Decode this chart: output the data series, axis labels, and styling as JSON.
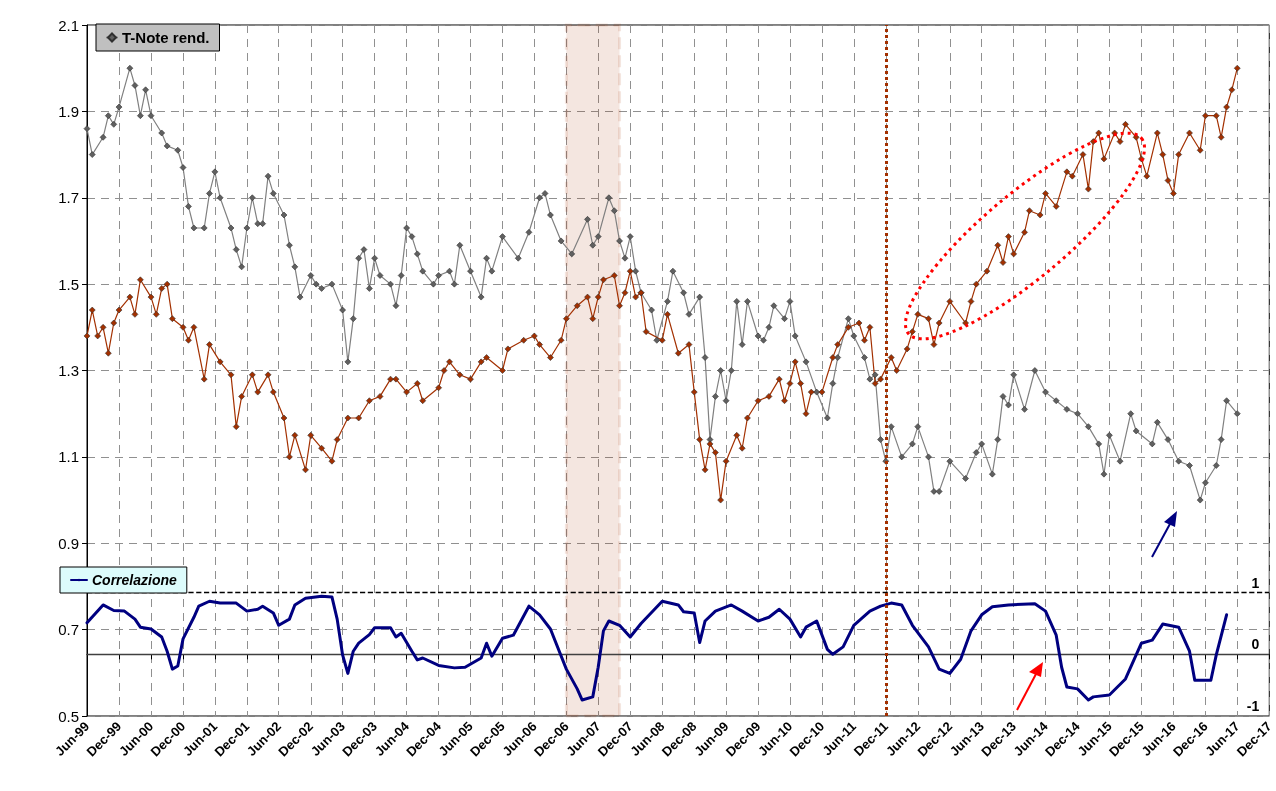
{
  "chart_data": {
    "type": "line",
    "xlim": [
      "1999-06",
      "2017-12"
    ],
    "xticks": [
      {
        "value": "1999-06",
        "label": "Jun-99"
      },
      {
        "value": "1999-12",
        "label": "Dec-99"
      },
      {
        "value": "2000-06",
        "label": "Jun-00"
      },
      {
        "value": "2000-12",
        "label": "Dec-00"
      },
      {
        "value": "2001-06",
        "label": "Jun-01"
      },
      {
        "value": "2001-12",
        "label": "Dec-01"
      },
      {
        "value": "2002-06",
        "label": "Jun-02"
      },
      {
        "value": "2002-12",
        "label": "Dec-02"
      },
      {
        "value": "2003-06",
        "label": "Jun-03"
      },
      {
        "value": "2003-12",
        "label": "Dec-03"
      },
      {
        "value": "2004-06",
        "label": "Jun-04"
      },
      {
        "value": "2004-12",
        "label": "Dec-04"
      },
      {
        "value": "2005-06",
        "label": "Jun-05"
      },
      {
        "value": "2005-12",
        "label": "Dec-05"
      },
      {
        "value": "2006-06",
        "label": "Jun-06"
      },
      {
        "value": "2006-12",
        "label": "Dec-06"
      },
      {
        "value": "2007-06",
        "label": "Jun-07"
      },
      {
        "value": "2007-12",
        "label": "Dec-07"
      },
      {
        "value": "2008-06",
        "label": "Jun-08"
      },
      {
        "value": "2008-12",
        "label": "Dec-08"
      },
      {
        "value": "2009-06",
        "label": "Jun-09"
      },
      {
        "value": "2009-12",
        "label": "Dec-09"
      },
      {
        "value": "2010-06",
        "label": "Jun-10"
      },
      {
        "value": "2010-12",
        "label": "Dec-10"
      },
      {
        "value": "2011-06",
        "label": "Jun-11"
      },
      {
        "value": "2011-12",
        "label": "Dec-11"
      },
      {
        "value": "2012-06",
        "label": "Jun-12"
      },
      {
        "value": "2012-12",
        "label": "Dec-12"
      },
      {
        "value": "2013-06",
        "label": "Jun-13"
      },
      {
        "value": "2013-12",
        "label": "Dec-13"
      },
      {
        "value": "2014-06",
        "label": "Jun-14"
      },
      {
        "value": "2014-12",
        "label": "Dec-14"
      },
      {
        "value": "2015-06",
        "label": "Jun-15"
      },
      {
        "value": "2015-12",
        "label": "Dec-15"
      },
      {
        "value": "2016-06",
        "label": "Jun-16"
      },
      {
        "value": "2016-12",
        "label": "Dec-16"
      },
      {
        "value": "2017-06",
        "label": "Jun-17"
      },
      {
        "value": "2017-12",
        "label": "Dec-17"
      }
    ],
    "ylim": [
      0.5,
      2.1
    ],
    "yticks": [
      0.5,
      0.7,
      0.9,
      1.1,
      1.3,
      1.5,
      1.7,
      1.9,
      2.1
    ],
    "y2lim": [
      -1,
      10.2
    ],
    "y2ticks": [
      -1,
      0,
      1
    ],
    "grid": true,
    "legend": "top left",
    "series": [
      {
        "name": "T-Note rend.",
        "color": "#606060",
        "marker": "diamond",
        "x": [
          "1999-06",
          "1999-07",
          "1999-09",
          "1999-10",
          "1999-11",
          "1999-12",
          "2000-02",
          "2000-03",
          "2000-04",
          "2000-05",
          "2000-06",
          "2000-08",
          "2000-09",
          "2000-11",
          "2000-12",
          "2001-01",
          "2001-02",
          "2001-04",
          "2001-05",
          "2001-06",
          "2001-07",
          "2001-09",
          "2001-10",
          "2001-11",
          "2001-12",
          "2002-01",
          "2002-02",
          "2002-03",
          "2002-04",
          "2002-05",
          "2002-07",
          "2002-08",
          "2002-09",
          "2002-10",
          "2002-12",
          "2003-01",
          "2003-02",
          "2003-04",
          "2003-06",
          "2003-07",
          "2003-08",
          "2003-09",
          "2003-10",
          "2003-11",
          "2003-12",
          "2004-01",
          "2004-03",
          "2004-04",
          "2004-05",
          "2004-06",
          "2004-07",
          "2004-08",
          "2004-09",
          "2004-11",
          "2004-12",
          "2005-02",
          "2005-03",
          "2005-04",
          "2005-06",
          "2005-08",
          "2005-09",
          "2005-10",
          "2005-12",
          "2006-03",
          "2006-05",
          "2006-07",
          "2006-08",
          "2006-09",
          "2006-11",
          "2007-01",
          "2007-04",
          "2007-05",
          "2007-06",
          "2007-08",
          "2007-09",
          "2007-10",
          "2007-11",
          "2007-12",
          "2008-01",
          "2008-02",
          "2008-04",
          "2008-05",
          "2008-07",
          "2008-08",
          "2008-10",
          "2008-11",
          "2009-01",
          "2009-02",
          "2009-03",
          "2009-04",
          "2009-05",
          "2009-06",
          "2009-07",
          "2009-08",
          "2009-09",
          "2009-10",
          "2009-12",
          "2010-01",
          "2010-02",
          "2010-03",
          "2010-05",
          "2010-06",
          "2010-07",
          "2010-09",
          "2010-11",
          "2011-01",
          "2011-02",
          "2011-03",
          "2011-05",
          "2011-06",
          "2011-08",
          "2011-09",
          "2011-10",
          "2011-11",
          "2011-12",
          "2012-01",
          "2012-03",
          "2012-05",
          "2012-06",
          "2012-08",
          "2012-09",
          "2012-10",
          "2012-12",
          "2013-03",
          "2013-05",
          "2013-06",
          "2013-08",
          "2013-09",
          "2013-10",
          "2013-11",
          "2013-12",
          "2014-02",
          "2014-04",
          "2014-06",
          "2014-08",
          "2014-10",
          "2014-12",
          "2015-02",
          "2015-04",
          "2015-05",
          "2015-06",
          "2015-08",
          "2015-10",
          "2015-11",
          "2016-02",
          "2016-03",
          "2016-05",
          "2016-07",
          "2016-09",
          "2016-11",
          "2016-12",
          "2017-02",
          "2017-03",
          "2017-04",
          "2017-06"
        ],
        "values": [
          1.86,
          1.8,
          1.84,
          1.89,
          1.87,
          1.91,
          2.0,
          1.96,
          1.89,
          1.95,
          1.89,
          1.85,
          1.82,
          1.81,
          1.77,
          1.68,
          1.63,
          1.63,
          1.71,
          1.76,
          1.7,
          1.63,
          1.58,
          1.54,
          1.63,
          1.7,
          1.64,
          1.64,
          1.75,
          1.71,
          1.66,
          1.59,
          1.54,
          1.47,
          1.52,
          1.5,
          1.49,
          1.5,
          1.44,
          1.32,
          1.42,
          1.56,
          1.58,
          1.49,
          1.56,
          1.52,
          1.5,
          1.45,
          1.52,
          1.63,
          1.61,
          1.57,
          1.53,
          1.5,
          1.52,
          1.53,
          1.5,
          1.59,
          1.53,
          1.47,
          1.56,
          1.53,
          1.61,
          1.56,
          1.62,
          1.7,
          1.71,
          1.66,
          1.6,
          1.57,
          1.65,
          1.59,
          1.61,
          1.7,
          1.67,
          1.6,
          1.56,
          1.61,
          1.53,
          1.48,
          1.44,
          1.37,
          1.46,
          1.53,
          1.48,
          1.43,
          1.47,
          1.33,
          1.14,
          1.24,
          1.3,
          1.23,
          1.3,
          1.46,
          1.36,
          1.46,
          1.38,
          1.37,
          1.4,
          1.45,
          1.42,
          1.46,
          1.38,
          1.32,
          1.25,
          1.19,
          1.27,
          1.33,
          1.42,
          1.38,
          1.33,
          1.28,
          1.29,
          1.14,
          1.09,
          1.17,
          1.1,
          1.13,
          1.17,
          1.1,
          1.02,
          1.02,
          1.09,
          1.05,
          1.11,
          1.13,
          1.06,
          1.14,
          1.24,
          1.22,
          1.29,
          1.21,
          1.3,
          1.25,
          1.23,
          1.21,
          1.2,
          1.17,
          1.13,
          1.06,
          1.15,
          1.09,
          1.2,
          1.16,
          1.13,
          1.18,
          1.14,
          1.09,
          1.08,
          1.0,
          1.04,
          1.08,
          1.14,
          1.23,
          1.2
        ]
      },
      {
        "color": "#a33000",
        "marker": "diamond",
        "x": [
          "1999-06",
          "1999-07",
          "1999-08",
          "1999-09",
          "1999-10",
          "1999-11",
          "1999-12",
          "2000-02",
          "2000-03",
          "2000-04",
          "2000-06",
          "2000-07",
          "2000-08",
          "2000-09",
          "2000-10",
          "2000-12",
          "2001-01",
          "2001-02",
          "2001-04",
          "2001-05",
          "2001-07",
          "2001-09",
          "2001-10",
          "2001-11",
          "2002-01",
          "2002-02",
          "2002-04",
          "2002-05",
          "2002-07",
          "2002-08",
          "2002-09",
          "2002-11",
          "2002-12",
          "2003-02",
          "2003-04",
          "2003-05",
          "2003-07",
          "2003-09",
          "2003-11",
          "2004-01",
          "2004-03",
          "2004-04",
          "2004-06",
          "2004-08",
          "2004-09",
          "2004-12",
          "2005-01",
          "2005-02",
          "2005-04",
          "2005-06",
          "2005-08",
          "2005-09",
          "2005-12",
          "2006-01",
          "2006-04",
          "2006-06",
          "2006-07",
          "2006-09",
          "2006-11",
          "2006-12",
          "2007-02",
          "2007-04",
          "2007-05",
          "2007-06",
          "2007-07",
          "2007-09",
          "2007-10",
          "2007-11",
          "2007-12",
          "2008-01",
          "2008-02",
          "2008-03",
          "2008-06",
          "2008-07",
          "2008-09",
          "2008-11",
          "2008-12",
          "2009-01",
          "2009-02",
          "2009-03",
          "2009-04",
          "2009-05",
          "2009-06",
          "2009-08",
          "2009-09",
          "2009-10",
          "2009-12",
          "2010-02",
          "2010-04",
          "2010-05",
          "2010-06",
          "2010-07",
          "2010-08",
          "2010-09",
          "2010-10",
          "2010-12",
          "2011-02",
          "2011-03",
          "2011-05",
          "2011-07",
          "2011-08",
          "2011-09",
          "2011-10",
          "2011-11",
          "2012-01",
          "2012-02",
          "2012-04",
          "2012-05",
          "2012-06",
          "2012-08",
          "2012-09",
          "2012-10",
          "2012-12",
          "2013-03",
          "2013-04",
          "2013-05",
          "2013-07",
          "2013-09",
          "2013-10",
          "2013-11",
          "2013-12",
          "2014-02",
          "2014-03",
          "2014-05",
          "2014-06",
          "2014-08",
          "2014-10",
          "2014-11",
          "2015-01",
          "2015-02",
          "2015-03",
          "2015-04",
          "2015-05",
          "2015-07",
          "2015-08",
          "2015-09",
          "2015-11",
          "2015-12",
          "2016-01",
          "2016-03",
          "2016-04",
          "2016-05",
          "2016-06",
          "2016-07",
          "2016-09",
          "2016-11",
          "2016-12",
          "2017-02",
          "2017-03",
          "2017-04",
          "2017-05",
          "2017-06"
        ],
        "values": [
          1.38,
          1.44,
          1.38,
          1.4,
          1.34,
          1.41,
          1.44,
          1.47,
          1.43,
          1.51,
          1.47,
          1.43,
          1.49,
          1.5,
          1.42,
          1.4,
          1.37,
          1.4,
          1.28,
          1.36,
          1.32,
          1.29,
          1.17,
          1.24,
          1.29,
          1.25,
          1.29,
          1.25,
          1.19,
          1.1,
          1.15,
          1.07,
          1.15,
          1.12,
          1.09,
          1.14,
          1.19,
          1.19,
          1.23,
          1.24,
          1.28,
          1.28,
          1.25,
          1.27,
          1.23,
          1.26,
          1.3,
          1.32,
          1.29,
          1.28,
          1.32,
          1.33,
          1.3,
          1.35,
          1.37,
          1.38,
          1.36,
          1.33,
          1.37,
          1.42,
          1.45,
          1.47,
          1.42,
          1.47,
          1.51,
          1.52,
          1.45,
          1.48,
          1.53,
          1.47,
          1.48,
          1.39,
          1.37,
          1.43,
          1.34,
          1.36,
          1.25,
          1.14,
          1.07,
          1.13,
          1.11,
          1.0,
          1.09,
          1.15,
          1.12,
          1.19,
          1.23,
          1.24,
          1.28,
          1.23,
          1.27,
          1.32,
          1.27,
          1.2,
          1.25,
          1.25,
          1.33,
          1.36,
          1.4,
          1.41,
          1.37,
          1.4,
          1.27,
          1.28,
          1.33,
          1.3,
          1.35,
          1.39,
          1.43,
          1.42,
          1.36,
          1.41,
          1.46,
          1.41,
          1.46,
          1.5,
          1.53,
          1.59,
          1.55,
          1.61,
          1.57,
          1.62,
          1.67,
          1.66,
          1.71,
          1.68,
          1.76,
          1.75,
          1.8,
          1.72,
          1.83,
          1.85,
          1.79,
          1.85,
          1.83,
          1.87,
          1.84,
          1.79,
          1.75,
          1.85,
          1.8,
          1.74,
          1.71,
          1.8,
          1.85,
          1.81,
          1.89,
          1.89,
          1.84,
          1.91,
          1.95,
          2.0
        ]
      },
      {
        "name": "Correlazione",
        "color": "#000080",
        "marker": "none",
        "axis": "y2",
        "x": [
          "1999-06",
          "1999-09",
          "1999-11",
          "2000-01",
          "2000-03",
          "2000-04",
          "2000-06",
          "2000-08",
          "2000-09",
          "2000-10",
          "2000-11",
          "2000-12",
          "2001-02",
          "2001-03",
          "2001-05",
          "2001-07",
          "2001-10",
          "2001-12",
          "2002-02",
          "2002-03",
          "2002-05",
          "2002-06",
          "2002-08",
          "2002-09",
          "2002-11",
          "2003-02",
          "2003-04",
          "2003-05",
          "2003-06",
          "2003-07",
          "2003-08",
          "2003-09",
          "2003-11",
          "2003-12",
          "2004-03",
          "2004-04",
          "2004-05",
          "2004-07",
          "2004-08",
          "2004-09",
          "2004-12",
          "2005-03",
          "2005-05",
          "2005-08",
          "2005-09",
          "2005-10",
          "2005-12",
          "2006-02",
          "2006-05",
          "2006-07",
          "2006-09",
          "2006-12",
          "2007-02",
          "2007-03",
          "2007-05",
          "2007-06",
          "2007-07",
          "2007-08",
          "2007-10",
          "2007-12",
          "2008-02",
          "2008-06",
          "2008-09",
          "2008-10",
          "2008-12",
          "2009-01",
          "2009-02",
          "2009-04",
          "2009-07",
          "2009-09",
          "2009-12",
          "2010-02",
          "2010-04",
          "2010-06",
          "2010-08",
          "2010-09",
          "2010-11",
          "2011-01",
          "2011-02",
          "2011-04",
          "2011-06",
          "2011-09",
          "2011-11",
          "2012-01",
          "2012-03",
          "2012-05",
          "2012-08",
          "2012-10",
          "2012-12",
          "2013-02",
          "2013-04",
          "2013-06",
          "2013-08",
          "2013-11",
          "2014-04",
          "2014-06",
          "2014-08",
          "2014-09",
          "2014-10",
          "2014-12",
          "2015-02",
          "2015-03",
          "2015-06",
          "2015-09",
          "2015-12",
          "2016-02",
          "2016-04",
          "2016-07",
          "2016-09",
          "2016-10",
          "2017-01",
          "2017-02",
          "2017-04"
        ],
        "values": [
          0.51,
          0.8,
          0.71,
          0.7,
          0.57,
          0.44,
          0.41,
          0.28,
          0.05,
          -0.24,
          -0.19,
          0.25,
          0.6,
          0.78,
          0.86,
          0.83,
          0.83,
          0.7,
          0.73,
          0.78,
          0.67,
          0.47,
          0.57,
          0.8,
          0.91,
          0.94,
          0.93,
          0.57,
          -0.01,
          -0.31,
          0.05,
          0.18,
          0.32,
          0.43,
          0.43,
          0.28,
          0.34,
          0.05,
          -0.09,
          -0.06,
          -0.18,
          -0.22,
          -0.21,
          -0.06,
          0.18,
          -0.03,
          0.26,
          0.31,
          0.78,
          0.64,
          0.41,
          -0.24,
          -0.56,
          -0.74,
          -0.69,
          -0.21,
          0.38,
          0.54,
          0.47,
          0.28,
          0.5,
          0.86,
          0.8,
          0.69,
          0.67,
          0.19,
          0.54,
          0.7,
          0.8,
          0.7,
          0.54,
          0.6,
          0.73,
          0.57,
          0.28,
          0.44,
          0.54,
          0.08,
          0.0,
          0.12,
          0.47,
          0.7,
          0.78,
          0.83,
          0.8,
          0.47,
          0.12,
          -0.24,
          -0.31,
          -0.08,
          0.38,
          0.64,
          0.77,
          0.8,
          0.82,
          0.7,
          0.31,
          -0.21,
          -0.53,
          -0.56,
          -0.74,
          -0.69,
          -0.66,
          -0.4,
          0.18,
          0.23,
          0.49,
          0.44,
          0.05,
          -0.42,
          -0.42,
          -0.01,
          0.64
        ]
      }
    ],
    "bands": [
      {
        "axis": "x",
        "from": "2006-12",
        "to": "2007-10",
        "color": "#a33000"
      }
    ],
    "ref_lines": [
      {
        "axis": "y2",
        "value": 1,
        "color": "#000000",
        "line_style": "dashed"
      },
      {
        "axis": "y2",
        "value": 0,
        "color": "#404040",
        "line_style": "solid"
      },
      {
        "axis": "x",
        "value": "2011-12",
        "color": "#a33000",
        "line_style": "dotted"
      }
    ]
  }
}
